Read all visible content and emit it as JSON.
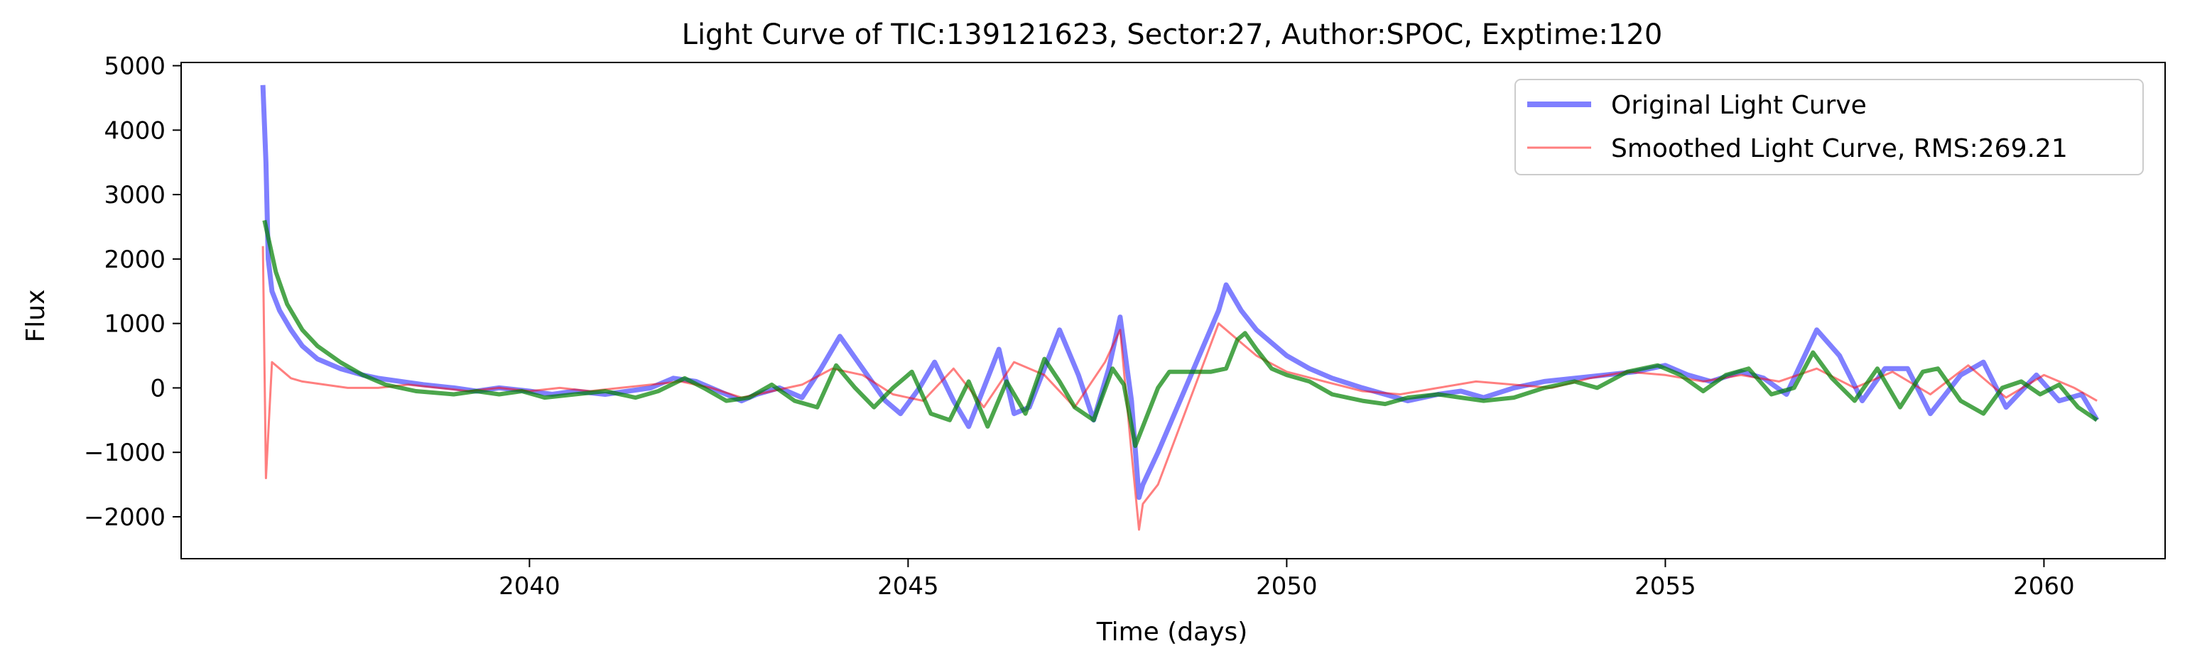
{
  "chart_data": {
    "type": "line",
    "title": "Light Curve of TIC:139121623, Sector:27, Author:SPOC, Exptime:120",
    "xlabel": "Time (days)",
    "ylabel": "Flux",
    "xlim": [
      2035.4,
      2061.6
    ],
    "ylim": [
      -2650,
      5050
    ],
    "xticks": [
      2040,
      2045,
      2050,
      2055,
      2060
    ],
    "xtick_labels": [
      "2040",
      "2045",
      "2050",
      "2055",
      "2060"
    ],
    "yticks": [
      -2000,
      -1000,
      0,
      1000,
      2000,
      3000,
      4000,
      5000
    ],
    "ytick_labels": [
      "−2000",
      "−1000",
      "0",
      "1000",
      "2000",
      "3000",
      "4000",
      "5000"
    ],
    "grid": false,
    "legend_position": "top-right",
    "series": [
      {
        "name": "Original Light Curve",
        "color": "#0000ff",
        "opacity": 0.5,
        "x": [
          2036.48,
          2036.52,
          2036.55,
          2036.6,
          2036.7,
          2036.85,
          2037.0,
          2037.2,
          2037.5,
          2037.8,
          2038.0,
          2038.3,
          2038.6,
          2039.0,
          2039.3,
          2039.6,
          2040.0,
          2040.3,
          2040.6,
          2041.0,
          2041.3,
          2041.6,
          2041.9,
          2042.2,
          2042.5,
          2042.8,
          2043.0,
          2043.3,
          2043.6,
          2043.85,
          2044.1,
          2044.4,
          2044.7,
          2044.9,
          2045.15,
          2045.35,
          2045.6,
          2045.8,
          2046.0,
          2046.2,
          2046.4,
          2046.6,
          2046.8,
          2047.0,
          2047.25,
          2047.45,
          2047.65,
          2047.8,
          2047.95,
          2048.05,
          2048.1,
          2048.3,
          2049.1,
          2049.2,
          2049.4,
          2049.6,
          2049.8,
          2050.0,
          2050.3,
          2050.6,
          2051.0,
          2051.3,
          2051.6,
          2052.0,
          2052.3,
          2052.6,
          2053.0,
          2053.4,
          2053.8,
          2054.2,
          2054.6,
          2055.0,
          2055.3,
          2055.6,
          2056.0,
          2056.3,
          2056.6,
          2057.0,
          2057.3,
          2057.6,
          2057.9,
          2058.2,
          2058.5,
          2058.9,
          2059.2,
          2059.5,
          2059.9,
          2060.2,
          2060.5,
          2060.7
        ],
        "y": [
          4700,
          3500,
          2000,
          1500,
          1200,
          900,
          650,
          450,
          300,
          200,
          150,
          100,
          50,
          0,
          -50,
          0,
          -50,
          -100,
          -50,
          -100,
          -50,
          0,
          150,
          100,
          -50,
          -200,
          -100,
          0,
          -150,
          300,
          800,
          300,
          -200,
          -400,
          0,
          400,
          -200,
          -600,
          0,
          600,
          -400,
          -300,
          300,
          900,
          200,
          -500,
          300,
          1100,
          -200,
          -1700,
          -1500,
          -1000,
          1200,
          1600,
          1200,
          900,
          700,
          500,
          300,
          150,
          0,
          -100,
          -200,
          -100,
          -50,
          -150,
          0,
          100,
          150,
          200,
          250,
          350,
          200,
          100,
          250,
          150,
          -100,
          900,
          500,
          -200,
          300,
          300,
          -400,
          200,
          400,
          -300,
          200,
          -200,
          -100,
          -500
        ]
      },
      {
        "name": "Smoothed Light Curve, RMS:269.21",
        "color": "#ff0000",
        "opacity": 0.5,
        "x": [
          2036.48,
          2036.52,
          2036.6,
          2036.7,
          2036.85,
          2037.0,
          2037.3,
          2037.6,
          2038.0,
          2038.4,
          2038.8,
          2039.2,
          2039.6,
          2040.0,
          2040.4,
          2040.8,
          2041.2,
          2041.6,
          2042.0,
          2042.4,
          2042.8,
          2043.2,
          2043.6,
          2044.0,
          2044.4,
          2044.8,
          2045.2,
          2045.6,
          2046.0,
          2046.4,
          2046.8,
          2047.2,
          2047.6,
          2047.8,
          2047.95,
          2048.05,
          2048.1,
          2048.3,
          2049.1,
          2049.2,
          2049.4,
          2049.6,
          2050.0,
          2050.5,
          2051.0,
          2051.5,
          2052.0,
          2052.5,
          2053.0,
          2053.5,
          2054.0,
          2054.5,
          2055.0,
          2055.5,
          2056.0,
          2056.5,
          2057.0,
          2057.5,
          2058.0,
          2058.5,
          2059.0,
          2059.5,
          2060.0,
          2060.4,
          2060.7
        ],
        "y": [
          2200,
          -1400,
          400,
          300,
          150,
          100,
          50,
          0,
          0,
          50,
          0,
          -50,
          0,
          -50,
          0,
          -50,
          0,
          50,
          100,
          0,
          -150,
          -50,
          50,
          300,
          200,
          -100,
          -200,
          300,
          -300,
          400,
          200,
          -300,
          400,
          900,
          -1000,
          -2200,
          -1800,
          -1500,
          1000,
          900,
          700,
          500,
          250,
          100,
          -50,
          -100,
          0,
          100,
          50,
          0,
          150,
          250,
          200,
          100,
          200,
          100,
          300,
          0,
          250,
          -100,
          350,
          -150,
          200,
          0,
          -200
        ]
      },
      {
        "name": "",
        "color": "#008000",
        "opacity": 0.7,
        "x": [
          2036.5,
          2036.65,
          2036.8,
          2037.0,
          2037.2,
          2037.5,
          2037.8,
          2038.1,
          2038.5,
          2039.0,
          2039.3,
          2039.6,
          2039.9,
          2040.2,
          2040.6,
          2041.0,
          2041.4,
          2041.7,
          2042.05,
          2042.3,
          2042.6,
          2042.9,
          2043.2,
          2043.5,
          2043.8,
          2044.05,
          2044.3,
          2044.55,
          2044.8,
          2045.05,
          2045.3,
          2045.55,
          2045.8,
          2046.05,
          2046.3,
          2046.55,
          2046.8,
          2047.0,
          2047.2,
          2047.45,
          2047.7,
          2047.85,
          2048.0,
          2048.1,
          2048.3,
          2048.45,
          2048.6,
          2049.0,
          2049.2,
          2049.35,
          2049.45,
          2049.6,
          2049.8,
          2050.0,
          2050.3,
          2050.6,
          2051.0,
          2051.3,
          2051.6,
          2052.0,
          2052.3,
          2052.6,
          2053.0,
          2053.4,
          2053.8,
          2054.1,
          2054.5,
          2054.9,
          2055.2,
          2055.5,
          2055.8,
          2056.1,
          2056.4,
          2056.7,
          2056.95,
          2057.2,
          2057.5,
          2057.8,
          2058.1,
          2058.4,
          2058.6,
          2058.9,
          2059.2,
          2059.45,
          2059.7,
          2059.95,
          2060.2,
          2060.45,
          2060.7
        ],
        "y": [
          2600,
          1800,
          1300,
          900,
          650,
          400,
          200,
          50,
          -50,
          -100,
          -50,
          -100,
          -50,
          -150,
          -100,
          -50,
          -150,
          -50,
          150,
          0,
          -200,
          -150,
          50,
          -200,
          -300,
          350,
          0,
          -300,
          0,
          250,
          -400,
          -500,
          100,
          -600,
          100,
          -400,
          450,
          100,
          -300,
          -500,
          300,
          50,
          -900,
          -600,
          0,
          250,
          250,
          250,
          300,
          750,
          850,
          600,
          300,
          200,
          100,
          -100,
          -200,
          -250,
          -150,
          -100,
          -150,
          -200,
          -150,
          0,
          100,
          0,
          250,
          350,
          200,
          -50,
          200,
          300,
          -100,
          0,
          550,
          150,
          -200,
          300,
          -300,
          250,
          300,
          -200,
          -400,
          0,
          100,
          -100,
          50,
          -300,
          -500
        ]
      }
    ]
  }
}
